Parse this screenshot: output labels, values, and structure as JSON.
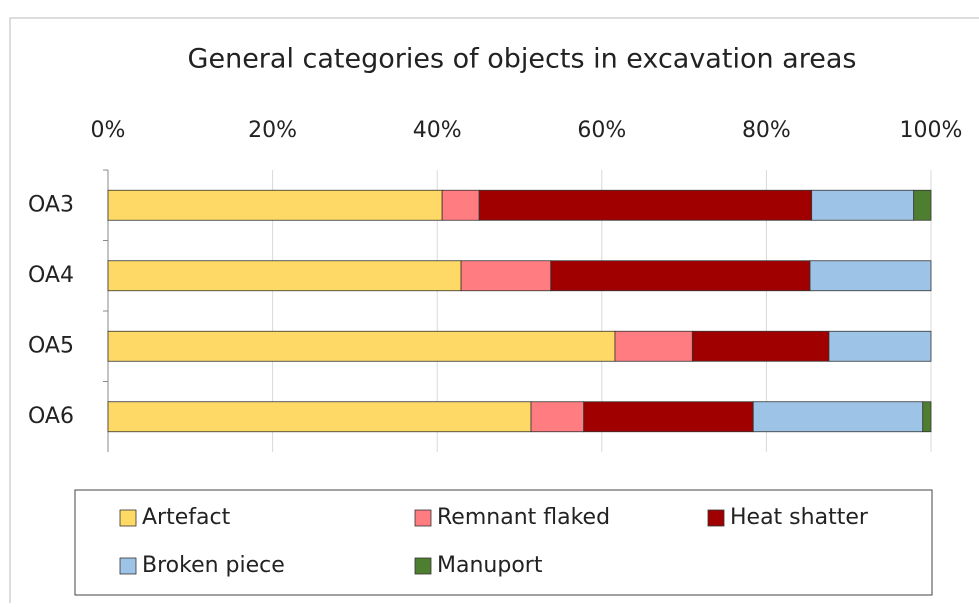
{
  "chart_data": {
    "type": "stacked-bar-horizontal",
    "title": "General categories of objects in excavation areas",
    "categories": [
      "OA3",
      "OA4",
      "OA5",
      "OA6"
    ],
    "series": [
      {
        "name": "Artefact",
        "color": "#ffd966",
        "values": [
          40.6,
          42.9,
          61.6,
          51.4
        ]
      },
      {
        "name": "Remnant flaked",
        "color": "#ff7c80",
        "values": [
          4.5,
          10.9,
          9.4,
          6.4
        ]
      },
      {
        "name": "Heat shatter",
        "color": "#a00000",
        "values": [
          40.4,
          31.5,
          16.6,
          20.6
        ]
      },
      {
        "name": "Broken piece",
        "color": "#9dc3e6",
        "values": [
          12.4,
          14.7,
          12.4,
          20.6
        ]
      },
      {
        "name": "Manuport",
        "color": "#4e7f30",
        "values": [
          2.1,
          0,
          0,
          1.0
        ]
      }
    ],
    "xlim": [
      0,
      100
    ],
    "xticks": [
      {
        "value": 0,
        "label": "0%"
      },
      {
        "value": 20,
        "label": "20%"
      },
      {
        "value": 40,
        "label": "40%"
      },
      {
        "value": 60,
        "label": "60%"
      },
      {
        "value": 80,
        "label": "80%"
      },
      {
        "value": 100,
        "label": "100%"
      }
    ],
    "grid": true,
    "legend": "bottom"
  }
}
